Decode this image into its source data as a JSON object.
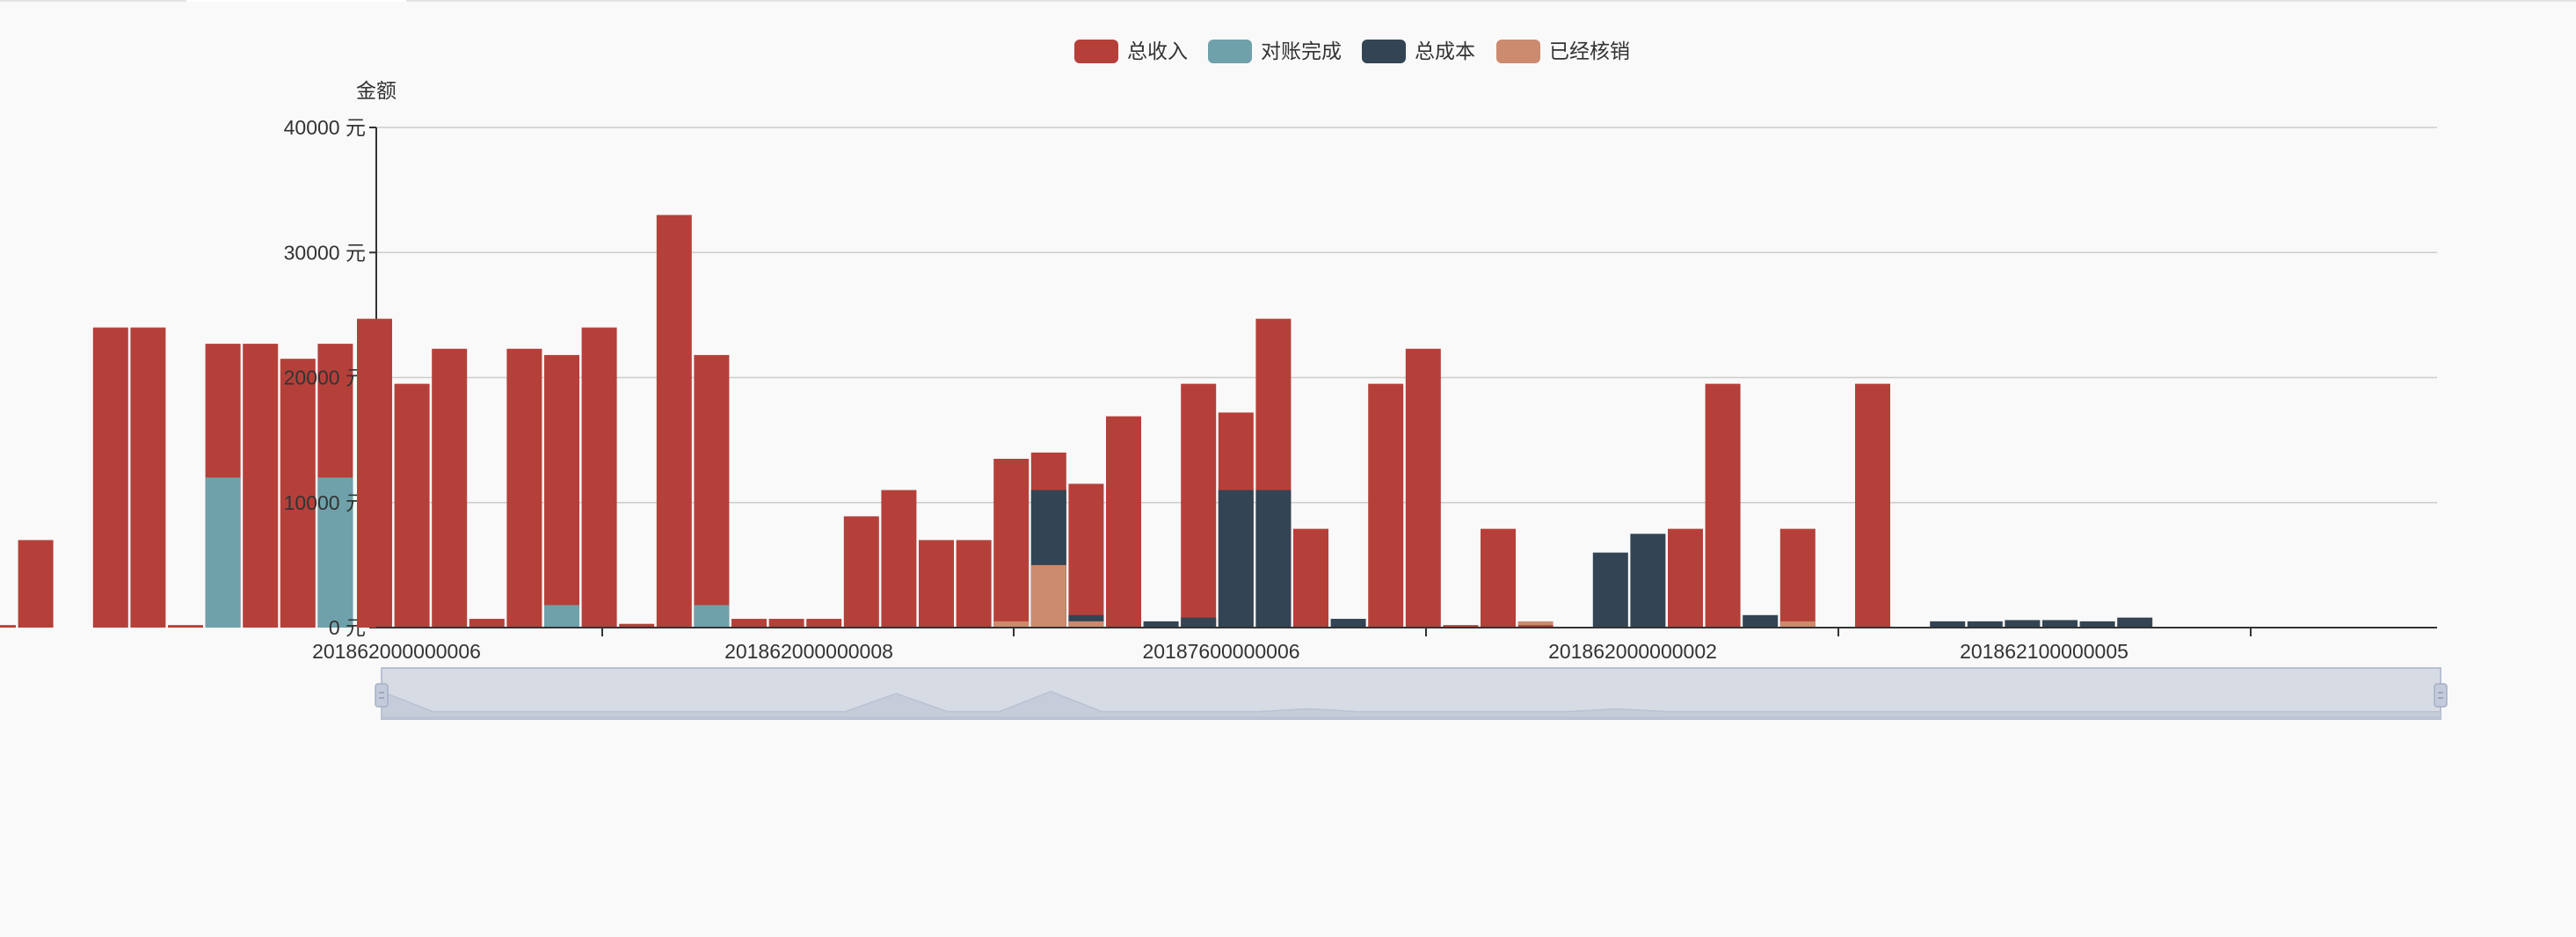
{
  "colors": {
    "income": "#b5403a",
    "reconciled": "#6fa1aa",
    "cost": "#334454",
    "verified": "#cc8a6e",
    "grid": "#cccccc",
    "axis": "#333333",
    "zoom_bg": "#d7dbe4",
    "zoom_border": "#b8c1d4",
    "zoom_area": "#c6ccda"
  },
  "chart_data": {
    "type": "bar",
    "ylabel": "金额",
    "y_unit": "元",
    "ylim": [
      0,
      40000
    ],
    "y_ticks": [
      {
        "value": 40000,
        "label": "40000 元"
      },
      {
        "value": 30000,
        "label": "30000 元"
      },
      {
        "value": 20000,
        "label": "20000 元"
      },
      {
        "value": 10000,
        "label": "10000 元"
      },
      {
        "value": 0,
        "label": "0 元"
      }
    ],
    "visible_x_labels": [
      "201862000000006",
      "201862000000008",
      "20187600000006",
      "201862000000002",
      "201862100000005"
    ],
    "legend": {
      "placement": "top-center",
      "items": [
        {
          "name": "总收入",
          "key": "income"
        },
        {
          "name": "对账完成",
          "key": "reconciled"
        },
        {
          "name": "总成本",
          "key": "cost"
        },
        {
          "name": "已经核销",
          "key": "verified"
        }
      ]
    },
    "grid": true,
    "overlap_note": "",
    "groups_left": [
      {
        "income": 200,
        "reconciled": 0,
        "cost": 0,
        "verified": 0
      },
      {
        "income": 7000,
        "reconciled": 0,
        "cost": 0,
        "verified": 0
      },
      {
        "income": 0,
        "reconciled": 0,
        "cost": 0,
        "verified": 0
      },
      {
        "income": 24000,
        "reconciled": 0,
        "cost": 0,
        "verified": 0
      },
      {
        "income": 24000,
        "reconciled": 0,
        "cost": 0,
        "verified": 0
      },
      {
        "income": 200,
        "reconciled": 0,
        "cost": 0,
        "verified": 0
      },
      {
        "income": 22700,
        "reconciled": 12000,
        "cost": 0,
        "verified": 0
      },
      {
        "income": 22700,
        "reconciled": 0,
        "cost": 0,
        "verified": 0
      },
      {
        "income": 21500,
        "reconciled": 0,
        "cost": 0,
        "verified": 0
      },
      {
        "income": 22700,
        "reconciled": 12000,
        "cost": 0,
        "verified": 0
      }
    ],
    "series": [
      {
        "name": "总收入",
        "key": "income",
        "values": [
          24700,
          19500,
          22300,
          700,
          22300,
          21800,
          24000,
          300,
          33000,
          21800,
          700,
          700,
          700,
          8900,
          11000,
          7000,
          7000,
          13500,
          14000,
          11500,
          16900,
          0,
          19500,
          17200,
          24700,
          7900,
          0,
          19500,
          22300,
          200,
          7900,
          200,
          0,
          0,
          0,
          7900,
          19500,
          0,
          7900,
          0,
          19500,
          0,
          0,
          0,
          0,
          0,
          0,
          0,
          0,
          0,
          0,
          0,
          0,
          0
        ]
      },
      {
        "name": "对账完成",
        "key": "reconciled",
        "values": [
          0,
          0,
          0,
          0,
          0,
          1800,
          0,
          0,
          0,
          1800,
          0,
          0,
          0,
          0,
          0,
          0,
          0,
          0,
          0,
          0,
          0,
          0,
          0,
          0,
          0,
          0,
          0,
          0,
          0,
          0,
          0,
          0,
          0,
          0,
          0,
          0,
          0,
          0,
          0,
          0,
          0,
          0,
          0,
          0,
          0,
          0,
          0,
          0,
          0,
          0,
          0,
          0,
          0,
          0
        ]
      },
      {
        "name": "总成本",
        "key": "cost",
        "values": [
          0,
          0,
          0,
          0,
          0,
          0,
          0,
          0,
          0,
          0,
          0,
          0,
          0,
          0,
          0,
          0,
          0,
          0,
          11000,
          1000,
          0,
          500,
          800,
          11000,
          11000,
          0,
          700,
          0,
          0,
          0,
          0,
          0,
          0,
          6000,
          7500,
          0,
          0,
          1000,
          0,
          0,
          0,
          0,
          500,
          500,
          600,
          600,
          500,
          800,
          0,
          0,
          0,
          0,
          0,
          0
        ]
      },
      {
        "name": "已经核销",
        "key": "verified",
        "values": [
          0,
          0,
          0,
          0,
          0,
          0,
          0,
          0,
          0,
          0,
          0,
          0,
          0,
          0,
          0,
          0,
          0,
          500,
          5000,
          500,
          0,
          0,
          0,
          0,
          0,
          0,
          0,
          0,
          0,
          0,
          0,
          500,
          0,
          0,
          0,
          0,
          0,
          0,
          500,
          0,
          0,
          0,
          0,
          0,
          0,
          0,
          0,
          0,
          0,
          0,
          0,
          0,
          0,
          0
        ]
      }
    ],
    "data_zoom": {
      "start_percent": 0,
      "end_percent": 100,
      "preview": [
        0.55,
        0.05,
        0.05,
        0.05,
        0.05,
        0.05,
        0.05,
        0.05,
        0.05,
        0.05,
        0.5,
        0.05,
        0.05,
        0.55,
        0.05,
        0.05,
        0.05,
        0.05,
        0.12,
        0.05,
        0.05,
        0.05,
        0.05,
        0.05,
        0.12,
        0.05,
        0.05,
        0.05,
        0.05,
        0.05,
        0.05,
        0.05,
        0.05,
        0.05,
        0.05,
        0.05,
        0.05,
        0.05,
        0.05,
        0.05,
        0.05
      ]
    }
  }
}
